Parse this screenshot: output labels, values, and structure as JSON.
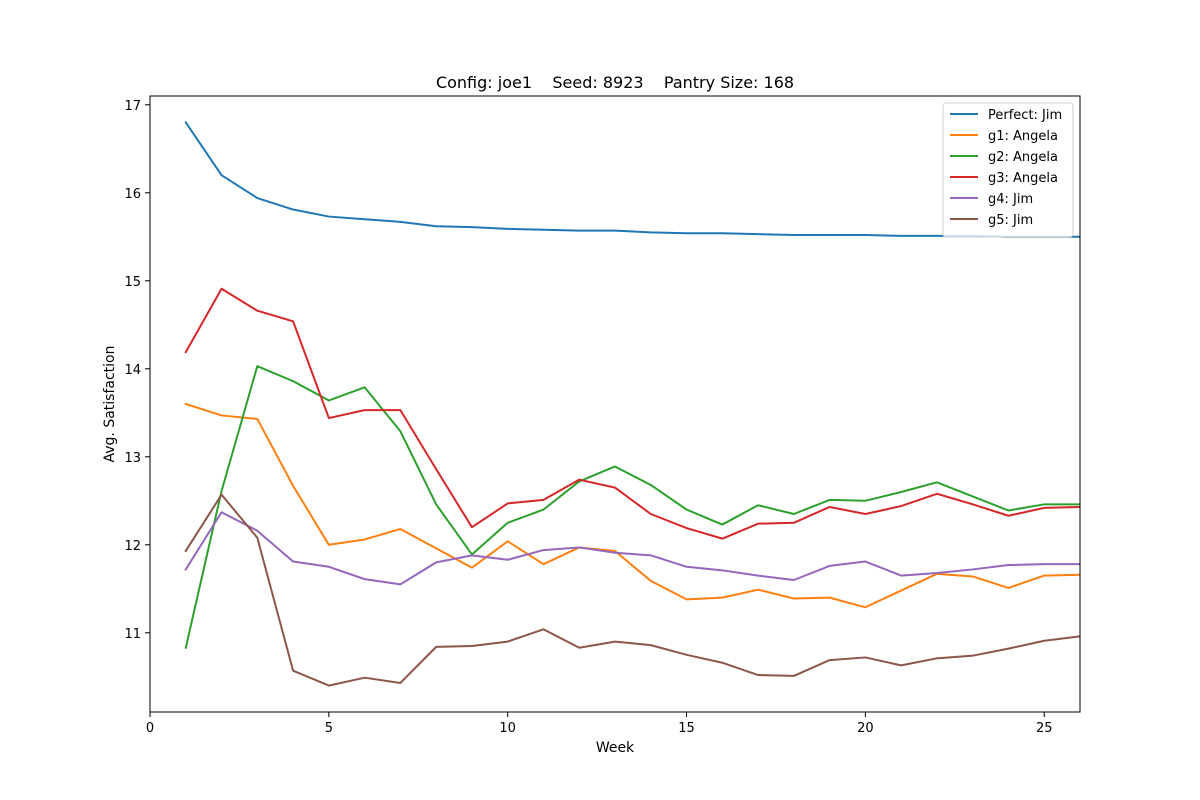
{
  "chart_data": {
    "type": "line",
    "title": "Config: joe1    Seed: 8923    Pantry Size: 168",
    "xlabel": "Week",
    "ylabel": "Avg. Satisfaction",
    "xlim": [
      0,
      26
    ],
    "ylim": [
      10.1,
      17.1
    ],
    "xticks": [
      0,
      5,
      10,
      15,
      20,
      25
    ],
    "yticks": [
      11,
      12,
      13,
      14,
      15,
      16,
      17
    ],
    "grid": false,
    "legend_position": "top-right",
    "x": [
      1,
      2,
      3,
      4,
      5,
      6,
      7,
      8,
      9,
      10,
      11,
      12,
      13,
      14,
      15,
      16,
      17,
      18,
      19,
      20,
      21,
      22,
      23,
      24,
      25,
      26
    ],
    "series": [
      {
        "name": "Perfect: Jim",
        "color": "#1f77b4",
        "values": [
          16.8,
          16.2,
          15.94,
          15.81,
          15.73,
          15.7,
          15.67,
          15.62,
          15.61,
          15.59,
          15.58,
          15.57,
          15.57,
          15.55,
          15.54,
          15.54,
          15.53,
          15.52,
          15.52,
          15.52,
          15.51,
          15.51,
          15.51,
          15.5,
          15.5,
          15.5
        ]
      },
      {
        "name": "g1: Angela",
        "color": "#ff7f0e",
        "values": [
          13.6,
          13.47,
          13.43,
          12.67,
          12.0,
          12.06,
          12.18,
          11.96,
          11.74,
          12.04,
          11.78,
          11.97,
          11.93,
          11.59,
          11.38,
          11.4,
          11.49,
          11.39,
          11.4,
          11.29,
          11.48,
          11.67,
          11.64,
          11.51,
          11.65,
          11.66
        ]
      },
      {
        "name": "g2: Angela",
        "color": "#2ca02c",
        "values": [
          10.83,
          12.61,
          14.03,
          13.86,
          13.64,
          13.79,
          13.29,
          12.46,
          11.89,
          12.25,
          12.4,
          12.72,
          12.89,
          12.68,
          12.4,
          12.23,
          12.45,
          12.35,
          12.51,
          12.5,
          12.6,
          12.71,
          12.55,
          12.39,
          12.46,
          12.46
        ]
      },
      {
        "name": "g3: Angela",
        "color": "#d62728",
        "values": [
          14.19,
          14.91,
          14.66,
          14.54,
          13.44,
          13.53,
          13.53,
          12.86,
          12.2,
          12.47,
          12.51,
          12.74,
          12.65,
          12.35,
          12.19,
          12.07,
          12.24,
          12.25,
          12.43,
          12.35,
          12.44,
          12.58,
          12.46,
          12.33,
          12.42,
          12.43
        ]
      },
      {
        "name": "g4: Jim",
        "color": "#9467bd",
        "values": [
          11.72,
          12.37,
          12.16,
          11.81,
          11.75,
          11.61,
          11.55,
          11.8,
          11.88,
          11.83,
          11.94,
          11.97,
          11.91,
          11.88,
          11.75,
          11.71,
          11.65,
          11.6,
          11.76,
          11.81,
          11.65,
          11.68,
          11.72,
          11.77,
          11.78,
          11.78
        ]
      },
      {
        "name": "g5: Jim",
        "color": "#8c564b",
        "values": [
          11.93,
          12.57,
          12.08,
          10.57,
          10.4,
          10.49,
          10.43,
          10.84,
          10.85,
          10.9,
          11.04,
          10.83,
          10.9,
          10.86,
          10.75,
          10.66,
          10.52,
          10.51,
          10.69,
          10.72,
          10.63,
          10.71,
          10.74,
          10.82,
          10.91,
          10.96
        ]
      }
    ]
  }
}
